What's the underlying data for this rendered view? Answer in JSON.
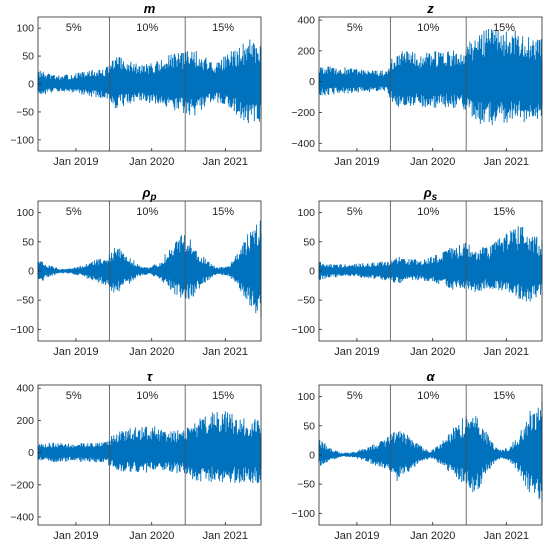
{
  "figure": {
    "color": "#0072BD",
    "axis_color": "#262626",
    "divider_color": "#4d4d4d"
  },
  "chart_data": [
    {
      "type": "area",
      "title": "m",
      "title_style": "bold-italic",
      "xlabel": "",
      "ylabel": "",
      "ylim": [
        -120,
        120
      ],
      "yticks": [
        -100,
        -50,
        0,
        50,
        100
      ],
      "x_ticklabels": [
        "Jan 2019",
        "Jan 2020",
        "Jan 2021"
      ],
      "segment_labels": [
        "5%",
        "10%",
        "15%"
      ],
      "grid": false,
      "series": [
        {
          "values": [
            [
              -25,
              26
            ],
            [
              -17,
              18
            ],
            [
              -13,
              15
            ],
            [
              -15,
              18
            ],
            [
              -20,
              22
            ],
            [
              -24,
              26
            ],
            [
              -26,
              28
            ],
            [
              -45,
              52
            ],
            [
              -38,
              42
            ],
            [
              -33,
              36
            ],
            [
              -34,
              38
            ],
            [
              -40,
              44
            ],
            [
              -48,
              55
            ],
            [
              -53,
              57
            ],
            [
              -62,
              67
            ],
            [
              -40,
              48
            ],
            [
              -32,
              40
            ],
            [
              -42,
              55
            ],
            [
              -60,
              70
            ],
            [
              -74,
              82
            ],
            [
              -78,
              84
            ]
          ]
        }
      ]
    },
    {
      "type": "area",
      "title": "z",
      "title_style": "bold-italic",
      "xlabel": "",
      "ylabel": "",
      "ylim": [
        -450,
        420
      ],
      "yticks": [
        -400,
        -200,
        0,
        200,
        400
      ],
      "x_ticklabels": [
        "Jan 2019",
        "Jan 2020",
        "Jan 2021"
      ],
      "segment_labels": [
        "5%",
        "10%",
        "15%"
      ],
      "grid": false,
      "series": [
        {
          "values": [
            [
              -95,
              110
            ],
            [
              -85,
              100
            ],
            [
              -80,
              95
            ],
            [
              -75,
              90
            ],
            [
              -70,
              85
            ],
            [
              -68,
              80
            ],
            [
              -65,
              75
            ],
            [
              -190,
              215
            ],
            [
              -175,
              200
            ],
            [
              -165,
              190
            ],
            [
              -170,
              195
            ],
            [
              -170,
              200
            ],
            [
              -175,
              205
            ],
            [
              -180,
              210
            ],
            [
              -270,
              330
            ],
            [
              -290,
              360
            ],
            [
              -280,
              350
            ],
            [
              -275,
              340
            ],
            [
              -270,
              330
            ],
            [
              -265,
              320
            ],
            [
              -260,
              310
            ]
          ]
        }
      ]
    },
    {
      "type": "area",
      "title": "ρ",
      "title_subscript": "p",
      "title_style": "bold-italic",
      "xlabel": "",
      "ylabel": "",
      "ylim": [
        -120,
        120
      ],
      "yticks": [
        -100,
        -50,
        0,
        50,
        100
      ],
      "x_ticklabels": [
        "Jan 2019",
        "Jan 2020",
        "Jan 2021"
      ],
      "segment_labels": [
        "5%",
        "10%",
        "15%"
      ],
      "grid": false,
      "series": [
        {
          "values": [
            [
              -22,
              22
            ],
            [
              -10,
              10
            ],
            [
              -4,
              4
            ],
            [
              -5,
              5
            ],
            [
              -10,
              10
            ],
            [
              -18,
              18
            ],
            [
              -25,
              25
            ],
            [
              -40,
              45
            ],
            [
              -25,
              28
            ],
            [
              -10,
              12
            ],
            [
              -5,
              6
            ],
            [
              -15,
              18
            ],
            [
              -35,
              45
            ],
            [
              -55,
              75
            ],
            [
              -45,
              45
            ],
            [
              -20,
              22
            ],
            [
              -6,
              6
            ],
            [
              -8,
              8
            ],
            [
              -30,
              35
            ],
            [
              -60,
              70
            ],
            [
              -85,
              90
            ]
          ]
        }
      ]
    },
    {
      "type": "area",
      "title": "ρ",
      "title_subscript": "s",
      "title_style": "bold-italic",
      "xlabel": "",
      "ylabel": "",
      "ylim": [
        -120,
        120
      ],
      "yticks": [
        -100,
        -50,
        0,
        50,
        100
      ],
      "x_ticklabels": [
        "Jan 2019",
        "Jan 2020",
        "Jan 2021"
      ],
      "segment_labels": [
        "5%",
        "10%",
        "15%"
      ],
      "grid": false,
      "series": [
        {
          "values": [
            [
              -16,
              16
            ],
            [
              -12,
              12
            ],
            [
              -10,
              12
            ],
            [
              -10,
              12
            ],
            [
              -12,
              14
            ],
            [
              -14,
              16
            ],
            [
              -16,
              18
            ],
            [
              -22,
              25
            ],
            [
              -18,
              22
            ],
            [
              -16,
              20
            ],
            [
              -18,
              24
            ],
            [
              -24,
              32
            ],
            [
              -32,
              42
            ],
            [
              -30,
              50
            ],
            [
              -38,
              40
            ],
            [
              -30,
              42
            ],
            [
              -34,
              55
            ],
            [
              -40,
              70
            ],
            [
              -50,
              80
            ],
            [
              -55,
              65
            ],
            [
              -45,
              55
            ]
          ]
        }
      ]
    },
    {
      "type": "area",
      "title": "τ",
      "title_style": "bold-italic",
      "xlabel": "",
      "ylabel": "",
      "ylim": [
        -450,
        420
      ],
      "yticks": [
        -400,
        -200,
        0,
        200,
        400
      ],
      "x_ticklabels": [
        "Jan 2019",
        "Jan 2020",
        "Jan 2021"
      ],
      "segment_labels": [
        "5%",
        "10%",
        "15%"
      ],
      "grid": false,
      "series": [
        {
          "values": [
            [
              -60,
              65
            ],
            [
              -60,
              62
            ],
            [
              -58,
              60
            ],
            [
              -58,
              60
            ],
            [
              -60,
              62
            ],
            [
              -62,
              64
            ],
            [
              -62,
              66
            ],
            [
              -115,
              130
            ],
            [
              -120,
              145
            ],
            [
              -125,
              165
            ],
            [
              -130,
              175
            ],
            [
              -130,
              150
            ],
            [
              -128,
              140
            ],
            [
              -130,
              140
            ],
            [
              -180,
              200
            ],
            [
              -185,
              230
            ],
            [
              -190,
              260
            ],
            [
              -195,
              270
            ],
            [
              -190,
              240
            ],
            [
              -190,
              220
            ],
            [
              -200,
              205
            ]
          ]
        }
      ]
    },
    {
      "type": "area",
      "title": "α",
      "title_style": "bold-italic",
      "xlabel": "",
      "ylabel": "",
      "ylim": [
        -120,
        120
      ],
      "yticks": [
        -100,
        -50,
        0,
        50,
        100
      ],
      "x_ticklabels": [
        "Jan 2019",
        "Jan 2020",
        "Jan 2021"
      ],
      "segment_labels": [
        "5%",
        "10%",
        "15%"
      ],
      "grid": false,
      "series": [
        {
          "values": [
            [
              -20,
              30
            ],
            [
              -10,
              12
            ],
            [
              -3,
              4
            ],
            [
              -4,
              5
            ],
            [
              -10,
              12
            ],
            [
              -18,
              20
            ],
            [
              -25,
              28
            ],
            [
              -45,
              50
            ],
            [
              -30,
              35
            ],
            [
              -15,
              18
            ],
            [
              -5,
              6
            ],
            [
              -18,
              22
            ],
            [
              -35,
              45
            ],
            [
              -50,
              68
            ],
            [
              -70,
              70
            ],
            [
              -35,
              40
            ],
            [
              -8,
              10
            ],
            [
              -10,
              12
            ],
            [
              -35,
              40
            ],
            [
              -70,
              80
            ],
            [
              -95,
              100
            ]
          ]
        }
      ]
    }
  ]
}
